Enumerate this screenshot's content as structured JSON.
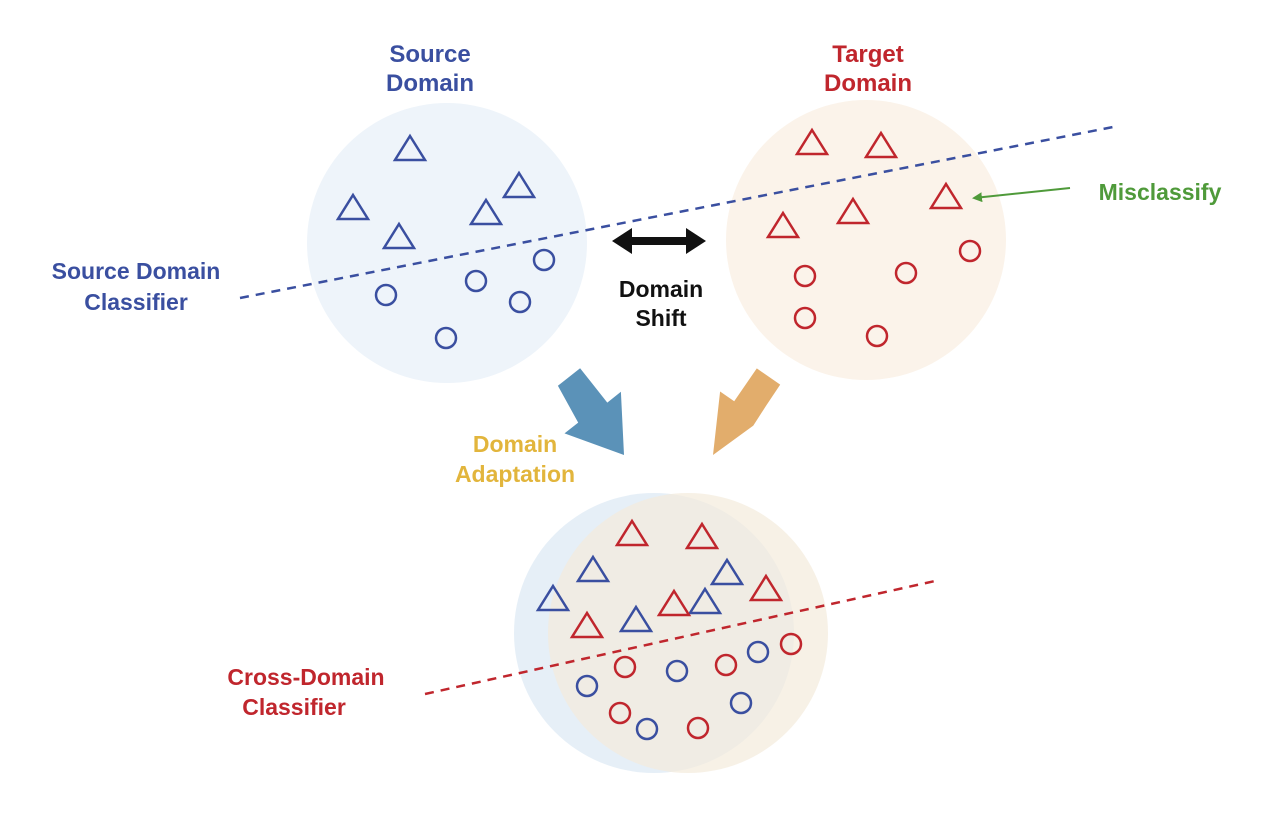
{
  "labels": {
    "source_title_line1": "Source",
    "source_title_line2": "Domain",
    "target_title_line1": "Target",
    "target_title_line2": "Domain",
    "domain_shift_line1": "Domain",
    "domain_shift_line2": "Shift",
    "misclassify": "Misclassify",
    "source_classifier_line1": "Source Domain",
    "source_classifier_line2": "Classifier",
    "domain_adaptation_line1": "Domain",
    "domain_adaptation_line2": "Adaptation",
    "cross_classifier_line1": "Cross-Domain",
    "cross_classifier_line2": "Classifier"
  },
  "colors": {
    "source": "#3a4fa0",
    "target": "#c0262d",
    "misclassify": "#4f9a3a",
    "adaptation": "#e2b53c",
    "shift": "#111111",
    "source_fill": "#eef4fa",
    "target_fill": "#fbf3ea",
    "source_arrow": "#5b92b8",
    "target_arrow": "#e2ad6c"
  }
}
